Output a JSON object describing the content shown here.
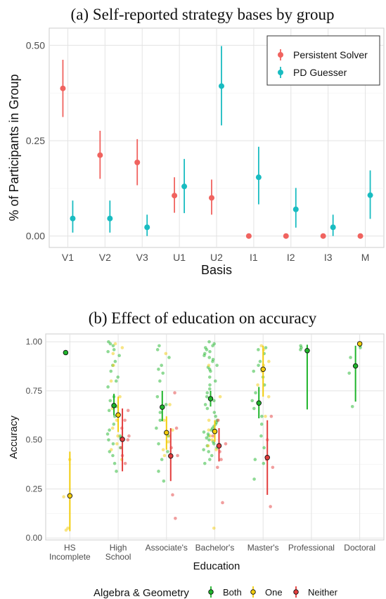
{
  "chart_data": [
    {
      "type": "scatter",
      "title": "(a) Self-reported strategy bases by group",
      "xlabel": "Basis",
      "ylabel": "% of Participants in Group",
      "categories": [
        "V1",
        "V2",
        "V3",
        "U1",
        "U2",
        "I1",
        "I2",
        "I3",
        "M"
      ],
      "yticks": [
        "0.00",
        "0.25",
        "0.50"
      ],
      "ylim": [
        -0.03,
        0.545
      ],
      "grid": true,
      "legend_position": "top-right",
      "series": [
        {
          "name": "Persistent Solver",
          "color": "#f0635f",
          "points": [
            {
              "x": "V1",
              "y": 0.387,
              "lo": 0.312,
              "hi": 0.462
            },
            {
              "x": "V2",
              "y": 0.212,
              "lo": 0.15,
              "hi": 0.276
            },
            {
              "x": "V3",
              "y": 0.193,
              "lo": 0.133,
              "hi": 0.254
            },
            {
              "x": "U1",
              "y": 0.106,
              "lo": 0.061,
              "hi": 0.154
            },
            {
              "x": "U2",
              "y": 0.1,
              "lo": 0.056,
              "hi": 0.148
            },
            {
              "x": "I1",
              "y": 0.0,
              "lo": 0.0,
              "hi": 0.0
            },
            {
              "x": "I2",
              "y": 0.0,
              "lo": 0.0,
              "hi": 0.0
            },
            {
              "x": "I3",
              "y": 0.0,
              "lo": 0.0,
              "hi": 0.0
            },
            {
              "x": "M",
              "y": 0.0,
              "lo": 0.0,
              "hi": 0.0
            }
          ]
        },
        {
          "name": "PD Guesser",
          "color": "#19bcc1",
          "points": [
            {
              "x": "V1",
              "y": 0.046,
              "lo": 0.009,
              "hi": 0.093
            },
            {
              "x": "V2",
              "y": 0.046,
              "lo": 0.009,
              "hi": 0.093
            },
            {
              "x": "V3",
              "y": 0.023,
              "lo": 0.0,
              "hi": 0.056
            },
            {
              "x": "U1",
              "y": 0.13,
              "lo": 0.06,
              "hi": 0.202
            },
            {
              "x": "U2",
              "y": 0.393,
              "lo": 0.29,
              "hi": 0.498
            },
            {
              "x": "I1",
              "y": 0.154,
              "lo": 0.083,
              "hi": 0.234
            },
            {
              "x": "I2",
              "y": 0.07,
              "lo": 0.022,
              "hi": 0.126
            },
            {
              "x": "I3",
              "y": 0.023,
              "lo": 0.0,
              "hi": 0.056
            },
            {
              "x": "M",
              "y": 0.107,
              "lo": 0.045,
              "hi": 0.172
            }
          ]
        }
      ]
    },
    {
      "type": "scatter",
      "title": "(b) Effect of education on accuracy",
      "xlabel": "Education",
      "ylabel": "Accuracy",
      "categories": [
        "HS\nIncomplete",
        "High\nSchool",
        "Associate's",
        "Bachelor's",
        "Master's",
        "Professional",
        "Doctoral"
      ],
      "yticks": [
        "0.00",
        "0.25",
        "0.50",
        "0.75",
        "1.00"
      ],
      "ylim": [
        -0.01,
        1.04
      ],
      "grid": true,
      "legend_title": "Algebra & Geometry",
      "legend_position": "bottom",
      "series": [
        {
          "name": "Both",
          "color": "#1fb52b",
          "summary": [
            {
              "x": "HS\nIncomplete",
              "mean": 0.945,
              "lo": 0.945,
              "hi": 0.945
            },
            {
              "x": "High\nSchool",
              "mean": 0.675,
              "lo": 0.625,
              "hi": 0.735
            },
            {
              "x": "Associate's",
              "mean": 0.667,
              "lo": 0.595,
              "hi": 0.75
            },
            {
              "x": "Bachelor's",
              "mean": 0.71,
              "lo": 0.67,
              "hi": 0.75
            },
            {
              "x": "Master's",
              "mean": 0.688,
              "lo": 0.61,
              "hi": 0.77
            },
            {
              "x": "Professional",
              "mean": 0.955,
              "lo": 0.655,
              "hi": 0.985
            },
            {
              "x": "Doctoral",
              "mean": 0.877,
              "lo": 0.695,
              "hi": 0.98
            }
          ],
          "samples": [
            {
              "x": "HS\nIncomplete",
              "y": [
                0.945,
                0.94
              ]
            },
            {
              "x": "High\nSchool",
              "y": [
                1.0,
                0.99,
                0.98,
                0.96,
                0.95,
                0.93,
                0.9,
                0.88,
                0.85,
                0.82,
                0.8,
                0.77,
                0.72,
                0.7,
                0.67,
                0.65,
                0.62,
                0.58,
                0.55,
                0.53,
                0.52,
                0.51,
                0.5,
                0.48,
                0.46,
                0.44,
                0.42,
                0.38,
                0.34
              ]
            },
            {
              "x": "Associate's",
              "y": [
                0.98,
                0.96,
                0.92,
                0.88,
                0.86,
                0.84,
                0.8,
                0.72,
                0.68,
                0.64,
                0.6,
                0.56,
                0.52,
                0.48,
                0.44,
                0.4,
                0.34,
                0.29
              ]
            },
            {
              "x": "Bachelor's",
              "y": [
                1.0,
                0.99,
                0.98,
                0.97,
                0.96,
                0.95,
                0.94,
                0.93,
                0.92,
                0.91,
                0.9,
                0.88,
                0.87,
                0.86,
                0.85,
                0.82,
                0.8,
                0.78,
                0.76,
                0.74,
                0.72,
                0.7,
                0.68,
                0.66,
                0.64,
                0.62,
                0.6,
                0.59,
                0.58,
                0.57,
                0.56,
                0.55,
                0.54,
                0.53,
                0.52,
                0.51,
                0.5,
                0.49,
                0.48,
                0.47,
                0.46,
                0.45,
                0.44,
                0.42,
                0.4,
                0.38
              ]
            },
            {
              "x": "Master's",
              "y": [
                0.97,
                0.96,
                0.94,
                0.9,
                0.88,
                0.85,
                0.82,
                0.78,
                0.74,
                0.7,
                0.66,
                0.62,
                0.58,
                0.52,
                0.46,
                0.4,
                0.38,
                0.3
              ]
            },
            {
              "x": "Professional",
              "y": [
                0.98,
                0.97,
                0.96,
                0.95
              ]
            },
            {
              "x": "Doctoral",
              "y": [
                0.98,
                0.97,
                0.92,
                0.88,
                0.84,
                0.67
              ]
            }
          ]
        },
        {
          "name": "One",
          "color": "#f2cc0c",
          "summary": [
            {
              "x": "HS\nIncomplete",
              "mean": 0.215,
              "lo": 0.035,
              "hi": 0.44
            },
            {
              "x": "High\nSchool",
              "mean": 0.627,
              "lo": 0.54,
              "hi": 0.72
            },
            {
              "x": "Associate's",
              "mean": 0.537,
              "lo": 0.45,
              "hi": 0.62
            },
            {
              "x": "Bachelor's",
              "mean": 0.543,
              "lo": 0.49,
              "hi": 0.6
            },
            {
              "x": "Master's",
              "mean": 0.86,
              "lo": 0.72,
              "hi": 0.98
            },
            {
              "x": "Doctoral",
              "mean": 0.99,
              "lo": 0.99,
              "hi": 0.99
            }
          ],
          "samples": [
            {
              "x": "HS\nIncomplete",
              "y": [
                0.4,
                0.21,
                0.05,
                0.04
              ]
            },
            {
              "x": "High\nSchool",
              "y": [
                0.99,
                0.97,
                0.94,
                0.88,
                0.8,
                0.72,
                0.66,
                0.6,
                0.56,
                0.52,
                0.48,
                0.45,
                0.4
              ]
            },
            {
              "x": "Associate's",
              "y": [
                0.94,
                0.68,
                0.6,
                0.55,
                0.52,
                0.49,
                0.45,
                0.42
              ]
            },
            {
              "x": "Bachelor's",
              "y": [
                0.88,
                0.72,
                0.6,
                0.55,
                0.52,
                0.5,
                0.47,
                0.45,
                0.05
              ]
            },
            {
              "x": "Master's",
              "y": [
                0.98,
                0.96,
                0.9,
                0.88,
                0.85,
                0.78,
                0.72,
                0.62
              ]
            },
            {
              "x": "Doctoral",
              "y": [
                0.99
              ]
            }
          ]
        },
        {
          "name": "Neither",
          "color": "#e33d3d",
          "summary": [
            {
              "x": "High\nSchool",
              "mean": 0.503,
              "lo": 0.34,
              "hi": 0.66
            },
            {
              "x": "Associate's",
              "mean": 0.418,
              "lo": 0.29,
              "hi": 0.56
            },
            {
              "x": "Bachelor's",
              "mean": 0.47,
              "lo": 0.39,
              "hi": 0.56
            },
            {
              "x": "Master's",
              "mean": 0.41,
              "lo": 0.22,
              "hi": 0.6
            }
          ],
          "samples": [
            {
              "x": "High\nSchool",
              "y": [
                0.65,
                0.6,
                0.56,
                0.52,
                0.5,
                0.46,
                0.42,
                0.38
              ]
            },
            {
              "x": "Associate's",
              "y": [
                0.74,
                0.56,
                0.46,
                0.42,
                0.22,
                0.1
              ]
            },
            {
              "x": "Bachelor's",
              "y": [
                0.6,
                0.52,
                0.48,
                0.44,
                0.4,
                0.36,
                0.18
              ]
            },
            {
              "x": "Master's",
              "y": [
                0.62,
                0.5,
                0.4,
                0.36,
                0.16
              ]
            }
          ]
        }
      ]
    }
  ]
}
